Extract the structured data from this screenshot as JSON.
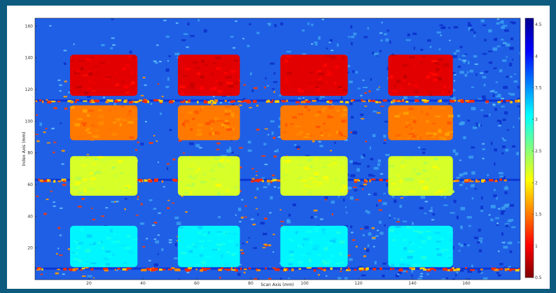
{
  "chart_data": {
    "type": "heatmap",
    "title": "",
    "xlabel": "Scan Axis (mm)",
    "ylabel": "Index Axis (mm)",
    "xlim": [
      0,
      180
    ],
    "ylim": [
      0,
      165
    ],
    "x_ticks": [
      "20",
      "40",
      "60",
      "80",
      "100",
      "120",
      "140",
      "160"
    ],
    "y_ticks": [
      "20",
      "40",
      "60",
      "80",
      "100",
      "120",
      "140",
      "160"
    ],
    "colorbar": {
      "range": [
        0.5,
        4.6
      ],
      "ticks": [
        "0.5",
        "1",
        "1.5",
        "2",
        "2.5",
        "3",
        "3.5",
        "4",
        "4.5"
      ],
      "colormap": "jet"
    },
    "background_value": 4.0,
    "rows": [
      {
        "y_range": [
          116,
          142
        ],
        "value": 0.9
      },
      {
        "y_range": [
          88,
          110
        ],
        "value": 1.5
      },
      {
        "y_range": [
          53,
          78
        ],
        "value": 2.2
      },
      {
        "y_range": [
          8,
          34
        ],
        "value": 3.1
      }
    ],
    "columns": [
      {
        "x_range": [
          13,
          38
        ]
      },
      {
        "x_range": [
          53,
          76
        ]
      },
      {
        "x_range": [
          91,
          116
        ]
      },
      {
        "x_range": [
          131,
          155
        ]
      }
    ],
    "grid": false,
    "legend": "colorbar-right"
  },
  "colors": {
    "frame": "#0d5b7e",
    "figure_bg": "#ffffff",
    "background_blue": "#1f5fe6"
  }
}
